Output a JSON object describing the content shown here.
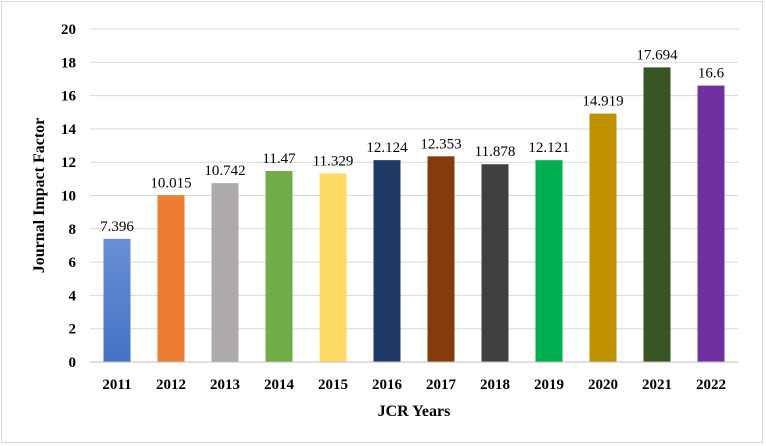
{
  "chart_data": {
    "type": "bar",
    "title": "",
    "xlabel": "JCR Years",
    "ylabel": "Journal Impact Factor",
    "ylim": [
      0,
      20
    ],
    "yticks": [
      0,
      2,
      4,
      6,
      8,
      10,
      12,
      14,
      16,
      18,
      20
    ],
    "grid": true,
    "legend": "none",
    "categories": [
      "2011",
      "2012",
      "2013",
      "2014",
      "2015",
      "2016",
      "2017",
      "2018",
      "2019",
      "2020",
      "2021",
      "2022"
    ],
    "values": [
      7.396,
      10.015,
      10.742,
      11.47,
      11.329,
      12.124,
      12.353,
      11.878,
      12.121,
      14.919,
      17.694,
      16.6
    ],
    "data_labels": [
      "7.396",
      "10.015",
      "10.742",
      "11.47",
      "11.329",
      "12.124",
      "12.353",
      "11.878",
      "12.121",
      "14.919",
      "17.694",
      "16.6"
    ],
    "colors": [
      "#4472c4",
      "#ed7d31",
      "#aeaaaa",
      "#70ad47",
      "#ffd966",
      "#1f3864",
      "#843c0c",
      "#404040",
      "#00b050",
      "#bf9000",
      "#375623",
      "#7030a0"
    ],
    "gridline_color": "#d9d9d9"
  }
}
